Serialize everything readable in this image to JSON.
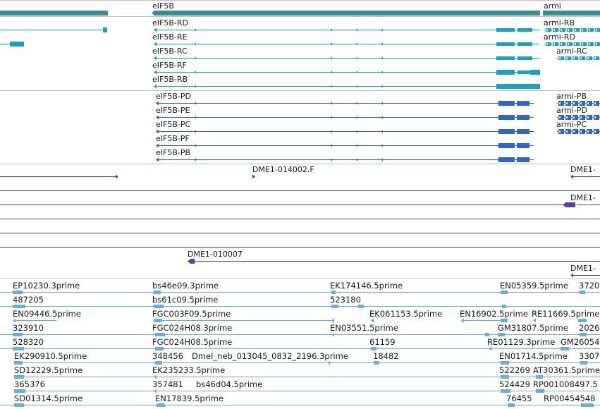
{
  "colors": {
    "gene": "#3a8e92",
    "transcript": "#1aa2c0",
    "protein": "#2e67c8",
    "assembly": "#5b3fa0",
    "clone": "#6aaee0",
    "separator": "#c0c0c0"
  },
  "genes": {
    "eif5b": "eIF5B",
    "armi": "armi"
  },
  "transcripts": {
    "eif5b": [
      "eIF5B-RD",
      "eIF5B-RE",
      "eIF5B-RC",
      "eIF5B-RF",
      "eIF5B-RB"
    ],
    "armi": [
      "armi-RB",
      "armi-RD",
      "armi-RC"
    ]
  },
  "proteins": {
    "eif5b": [
      "eIF5B-PD",
      "eIF5B-PE",
      "eIF5B-PC",
      "eIF5B-PF",
      "eIF5B-PB"
    ],
    "armi": [
      "armi-PB",
      "armi-PD",
      "armi-PC"
    ]
  },
  "assemblies": {
    "a1": "DME1-014002.F",
    "a2": "DME1-",
    "a3": "DME1-",
    "a4": "DME1-010007",
    "a5": "DME1-"
  },
  "clones": {
    "c0": "EP10230.3prime",
    "c1": "bs46e09.3prime",
    "c2": "EK174146.5prime",
    "c3": "EN05359.5prime",
    "c4": "3720",
    "c5": "487205",
    "c6": "bs61c09.5prime",
    "c7": "523180",
    "c8": "EN09446.5prime",
    "c9": "FGC003F09.5prime",
    "c10": "EK061153.5prime",
    "c11": "EN16902.5prime",
    "c12": "RE11669.5prime",
    "c13": "323910",
    "c14": "FGC024H08.3prime",
    "c15": "EN03551.5prime",
    "c16": "GM31807.5prime",
    "c17": "2026",
    "c18": "528320",
    "c19": "FGC024H08.5prime",
    "c20": "61159",
    "c21": "RE01129.3prime",
    "c22": "GM26054",
    "c23": "EK290910.5prime",
    "c24": "348456",
    "c25": "Dmel_neb_013045_0832_2196.3prime",
    "c26": "18482",
    "c27": "EN01714.5prime",
    "c28": "3307",
    "c29": "SD12229.5prime",
    "c30": "EK235233.5prime",
    "c31": "522269",
    "c32": "AT30361.5prime",
    "c33": "365376",
    "c34": "357481",
    "c35": "bs46d04.5prime",
    "c36": "524429",
    "c37": "RP001008497.5",
    "c38": "SD01314.5prime",
    "c39": "EN17839.5prime",
    "c40": "76455",
    "c41": "RP00454548"
  }
}
